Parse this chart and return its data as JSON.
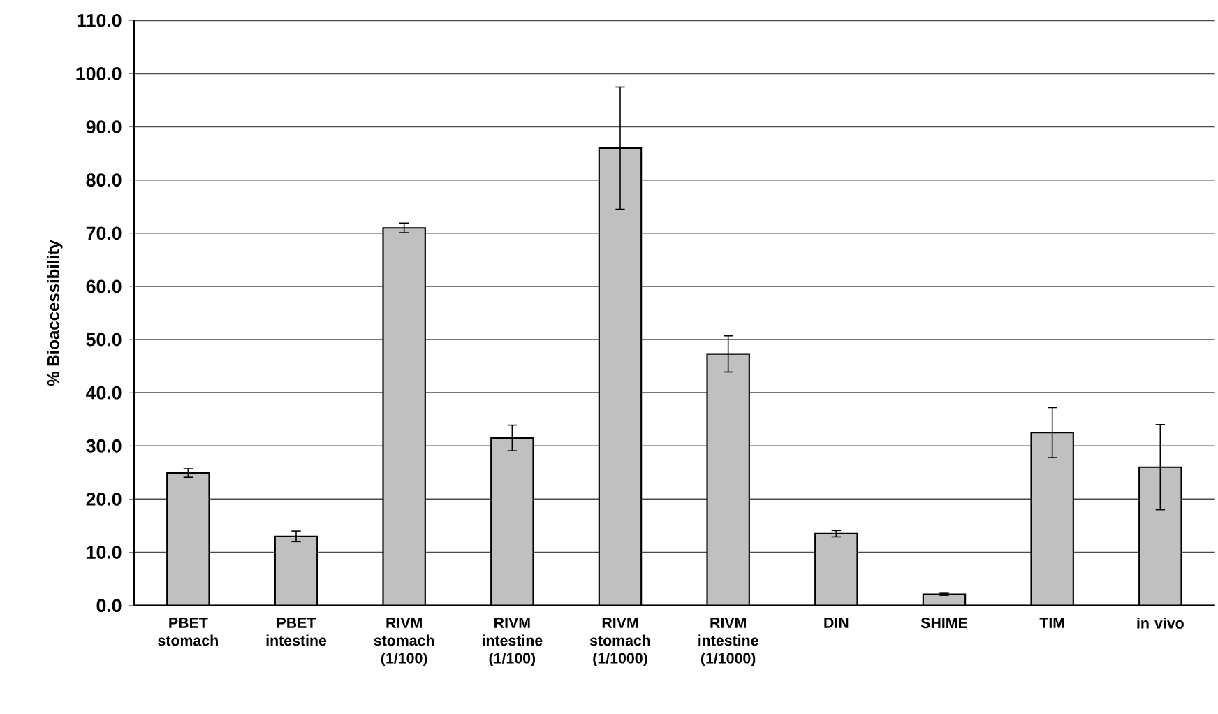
{
  "chart_data": {
    "type": "bar",
    "ylabel": "% Bioaccessibility",
    "categories": [
      "PBET stomach",
      "PBET intestine",
      "RIVM stomach (1/100)",
      "RIVM intestine (1/100)",
      "RIVM stomach (1/1000)",
      "RIVM intestine (1/1000)",
      "DIN",
      "SHIME",
      "TIM",
      "in vivo"
    ],
    "values": [
      24.9,
      13.0,
      71.0,
      31.5,
      86.0,
      47.3,
      13.5,
      2.1,
      32.5,
      26.0
    ],
    "errors": [
      0.8,
      1.0,
      0.9,
      2.4,
      11.5,
      3.4,
      0.6,
      0.2,
      4.7,
      8.0
    ],
    "color": "#c0c0c0",
    "ylim": [
      0,
      110
    ],
    "yticks": [
      {
        "value": 0,
        "label": "0.0"
      },
      {
        "value": 10,
        "label": "10.0"
      },
      {
        "value": 20,
        "label": "20.0"
      },
      {
        "value": 30,
        "label": "30.0"
      },
      {
        "value": 40,
        "label": "40.0"
      },
      {
        "value": 50,
        "label": "50.0"
      },
      {
        "value": 60,
        "label": "60.0"
      },
      {
        "value": 70,
        "label": "70.0"
      },
      {
        "value": 80,
        "label": "80.0"
      },
      {
        "value": 90,
        "label": "90.0"
      },
      {
        "value": 100,
        "label": "100.0"
      },
      {
        "value": 110,
        "label": "110.0"
      }
    ],
    "grid": "y"
  }
}
